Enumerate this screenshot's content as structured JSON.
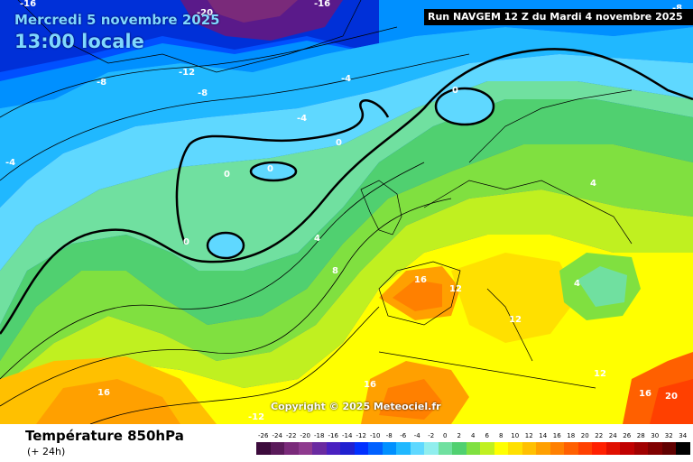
{
  "header": {
    "date": "Mercredi 5 novembre 2025",
    "time": "13:00 locale",
    "run": "Run NAVGEM 12 Z du Mardi 4 novembre 2025"
  },
  "copyright": "Copyright © 2025 Meteociel.fr",
  "footer": {
    "parameter": "Température 850hPa",
    "lead_time": "(+ 24h)"
  },
  "legend": {
    "labels": [
      "-26",
      "-24",
      "-22",
      "-20",
      "-18",
      "-16",
      "-14",
      "-12",
      "-10",
      "-8",
      "-6",
      "-4",
      "-2",
      "0",
      "2",
      "4",
      "6",
      "8",
      "10",
      "12",
      "14",
      "16",
      "18",
      "20",
      "22",
      "24",
      "26",
      "28",
      "30",
      "32",
      "34"
    ],
    "colors": [
      "#3c0b3c",
      "#5a1a5a",
      "#7a2a7a",
      "#8e3a8e",
      "#6a2aa0",
      "#4a20c0",
      "#2020d0",
      "#0030ff",
      "#0060ff",
      "#0090ff",
      "#20b8ff",
      "#5fd8ff",
      "#90eeee",
      "#70e0a0",
      "#50d070",
      "#80e040",
      "#c0f020",
      "#ffff00",
      "#ffe000",
      "#ffc000",
      "#ffa000",
      "#ff8000",
      "#ff6000",
      "#ff4000",
      "#ff2000",
      "#e01000",
      "#c00000",
      "#a00000",
      "#800000",
      "#600000",
      "#000000"
    ]
  },
  "contour_labels": [
    {
      "text": "-16",
      "lon": "nw"
    },
    {
      "text": "-20"
    },
    {
      "text": "-16"
    },
    {
      "text": "-8"
    },
    {
      "text": "-12"
    },
    {
      "text": "-8"
    },
    {
      "text": "-8"
    },
    {
      "text": "-4"
    },
    {
      "text": "-4"
    },
    {
      "text": "-4"
    },
    {
      "text": "0"
    },
    {
      "text": "0"
    },
    {
      "text": "0"
    },
    {
      "text": "0"
    },
    {
      "text": "0"
    },
    {
      "text": "4"
    },
    {
      "text": "8"
    },
    {
      "text": "16"
    },
    {
      "text": "12"
    },
    {
      "text": "12"
    },
    {
      "text": "4"
    },
    {
      "text": "4"
    },
    {
      "text": "12"
    },
    {
      "text": "16"
    },
    {
      "text": "16"
    },
    {
      "text": "16"
    },
    {
      "text": "20"
    },
    {
      "text": "-12"
    }
  ]
}
